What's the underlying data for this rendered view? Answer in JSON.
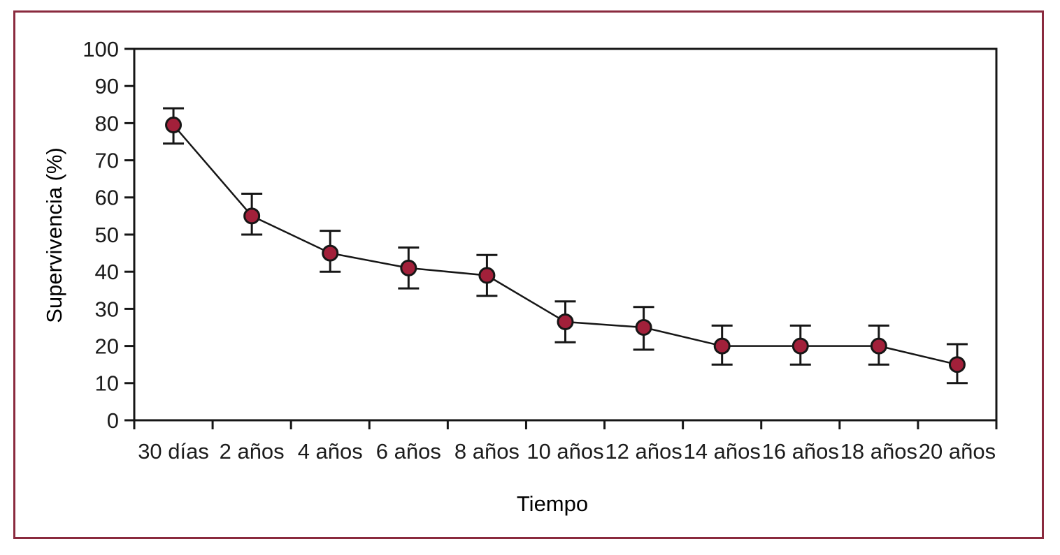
{
  "figure": {
    "border_color": "#8A2A3E",
    "background": "#FFFFFF"
  },
  "chart_data": {
    "type": "line",
    "title": "",
    "xlabel": "Tiempo",
    "ylabel": "Supervivencia (%)",
    "categories": [
      "30 días",
      "2 años",
      "4 años",
      "6 años",
      "8 años",
      "10 años",
      "12 años",
      "14 años",
      "16 años",
      "18 años",
      "20 años"
    ],
    "values": [
      79.5,
      55,
      45,
      41,
      39,
      26.5,
      25,
      20,
      20,
      20,
      15
    ],
    "error_low": [
      74.5,
      50,
      40,
      35.5,
      33.5,
      21,
      19,
      15,
      15,
      15,
      10
    ],
    "error_high": [
      84,
      61,
      51,
      46.5,
      44.5,
      32,
      30.5,
      25.5,
      25.5,
      25.5,
      20.5
    ],
    "ylim": [
      0,
      100
    ],
    "yticks": [
      0,
      10,
      20,
      30,
      40,
      50,
      60,
      70,
      80,
      90,
      100
    ],
    "grid": false,
    "legend": false,
    "marker_shape": "circle",
    "marker_fill": "#A2203A",
    "marker_stroke": "#161616",
    "line_color": "#161616",
    "axis_color": "#161616",
    "text_color": "#1C1C1C"
  }
}
